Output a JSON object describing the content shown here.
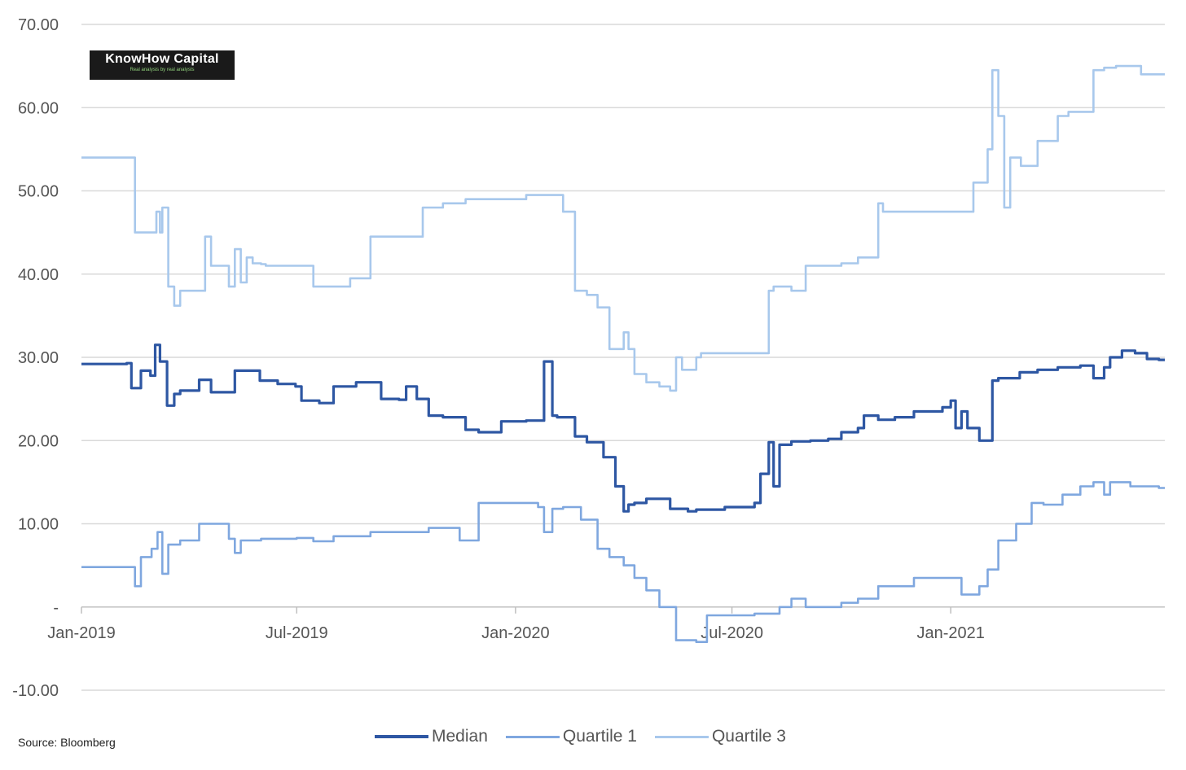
{
  "logo": {
    "name": "KnowHow Capital",
    "tagline": "Real analysis by real analysts"
  },
  "source": "Source: Bloomberg",
  "colors": {
    "median": "#2e57a3",
    "q1": "#7fa7df",
    "q3": "#a8c8ec"
  },
  "chart_data": {
    "type": "line",
    "title": "",
    "xlabel": "",
    "ylabel": "",
    "ylim": [
      -10,
      70
    ],
    "yticks": [
      "70.00",
      "60.00",
      "50.00",
      "40.00",
      "30.00",
      "20.00",
      "10.00",
      "-",
      "-10.00"
    ],
    "xticks": [
      "Jan-2019",
      "Jul-2019",
      "Jan-2020",
      "Jul-2020",
      "Jan-2021"
    ],
    "grid": true,
    "legend_position": "bottom",
    "series": [
      {
        "name": "Median",
        "key": "median",
        "x": [
          "2019-01-01",
          "2019-02-08",
          "2019-02-12",
          "2019-02-20",
          "2019-02-28",
          "2019-03-04",
          "2019-03-08",
          "2019-03-14",
          "2019-03-20",
          "2019-03-25",
          "2019-04-10",
          "2019-04-20",
          "2019-05-10",
          "2019-05-31",
          "2019-06-15",
          "2019-06-30",
          "2019-07-05",
          "2019-07-20",
          "2019-08-01",
          "2019-08-20",
          "2019-09-10",
          "2019-09-25",
          "2019-10-01",
          "2019-10-10",
          "2019-10-20",
          "2019-11-01",
          "2019-11-20",
          "2019-12-01",
          "2019-12-20",
          "2020-01-10",
          "2020-01-25",
          "2020-02-01",
          "2020-02-05",
          "2020-02-20",
          "2020-03-01",
          "2020-03-15",
          "2020-03-25",
          "2020-04-01",
          "2020-04-05",
          "2020-04-10",
          "2020-04-20",
          "2020-05-10",
          "2020-05-25",
          "2020-06-01",
          "2020-06-25",
          "2020-07-20",
          "2020-07-25",
          "2020-08-01",
          "2020-08-05",
          "2020-08-10",
          "2020-08-20",
          "2020-09-05",
          "2020-09-20",
          "2020-10-01",
          "2020-10-15",
          "2020-10-20",
          "2020-11-01",
          "2020-11-15",
          "2020-12-01",
          "2020-12-25",
          "2021-01-01",
          "2021-01-05",
          "2021-01-10",
          "2021-01-15",
          "2021-01-25",
          "2021-02-05",
          "2021-02-10",
          "2021-02-28",
          "2021-03-15",
          "2021-04-01",
          "2021-04-20",
          "2021-05-01",
          "2021-05-10",
          "2021-05-15",
          "2021-05-25",
          "2021-06-05",
          "2021-06-15",
          "2021-06-25"
        ],
        "values": [
          29.2,
          29.3,
          26.3,
          28.4,
          27.8,
          31.5,
          29.5,
          24.2,
          25.6,
          26.0,
          27.3,
          25.8,
          28.4,
          27.2,
          26.8,
          26.5,
          24.8,
          24.5,
          26.5,
          27.0,
          25.0,
          24.9,
          26.5,
          25.0,
          23.0,
          22.8,
          21.3,
          21.0,
          22.3,
          22.4,
          29.5,
          23.0,
          22.8,
          20.5,
          19.8,
          18.0,
          14.5,
          11.5,
          12.3,
          12.5,
          13.0,
          11.8,
          11.5,
          11.7,
          12.0,
          12.5,
          16.0,
          19.8,
          14.5,
          19.5,
          19.9,
          20.0,
          20.2,
          21.0,
          21.5,
          23.0,
          22.5,
          22.8,
          23.5,
          24.0,
          24.8,
          21.5,
          23.5,
          21.5,
          20.0,
          27.2,
          27.5,
          28.2,
          28.5,
          28.8,
          29.0,
          27.5,
          28.8,
          30.0,
          30.8,
          30.5,
          29.8,
          29.7
        ]
      },
      {
        "name": "Quartile 1",
        "key": "q1",
        "x": [
          "2019-01-01",
          "2019-02-10",
          "2019-02-15",
          "2019-02-20",
          "2019-03-01",
          "2019-03-06",
          "2019-03-10",
          "2019-03-15",
          "2019-03-25",
          "2019-04-10",
          "2019-04-20",
          "2019-05-05",
          "2019-05-10",
          "2019-05-15",
          "2019-06-01",
          "2019-07-01",
          "2019-07-15",
          "2019-08-01",
          "2019-09-01",
          "2019-10-01",
          "2019-10-20",
          "2019-11-15",
          "2019-12-01",
          "2020-01-01",
          "2020-01-20",
          "2020-01-25",
          "2020-02-01",
          "2020-02-10",
          "2020-02-25",
          "2020-03-10",
          "2020-03-20",
          "2020-04-01",
          "2020-04-10",
          "2020-04-20",
          "2020-05-01",
          "2020-05-15",
          "2020-06-01",
          "2020-06-10",
          "2020-07-01",
          "2020-07-20",
          "2020-08-10",
          "2020-08-20",
          "2020-09-01",
          "2020-09-20",
          "2020-10-01",
          "2020-10-15",
          "2020-11-01",
          "2020-12-01",
          "2020-12-20",
          "2021-01-01",
          "2021-01-10",
          "2021-01-25",
          "2021-02-01",
          "2021-02-10",
          "2021-02-25",
          "2021-03-10",
          "2021-03-20",
          "2021-04-05",
          "2021-04-20",
          "2021-05-01",
          "2021-05-10",
          "2021-05-15",
          "2021-06-01",
          "2021-06-25"
        ],
        "values": [
          4.8,
          4.8,
          2.5,
          6.0,
          7.0,
          9.0,
          4.0,
          7.5,
          8.0,
          10.0,
          10.0,
          8.2,
          6.5,
          8.0,
          8.2,
          8.3,
          7.9,
          8.5,
          9.0,
          9.0,
          9.5,
          8.0,
          12.5,
          12.5,
          12.0,
          9.0,
          11.8,
          12.0,
          10.5,
          7.0,
          6.0,
          5.0,
          3.5,
          2.0,
          0.0,
          -4.0,
          -4.2,
          -1.0,
          -1.0,
          -0.8,
          0.0,
          1.0,
          0.0,
          0.0,
          0.5,
          1.0,
          2.5,
          3.5,
          3.5,
          3.5,
          1.5,
          2.5,
          4.5,
          8.0,
          10.0,
          12.5,
          12.3,
          13.5,
          14.5,
          15.0,
          13.5,
          15.0,
          14.5,
          14.3
        ]
      },
      {
        "name": "Quartile 3",
        "key": "q3",
        "x": [
          "2019-01-01",
          "2019-02-10",
          "2019-02-15",
          "2019-03-01",
          "2019-03-05",
          "2019-03-08",
          "2019-03-10",
          "2019-03-15",
          "2019-03-20",
          "2019-03-25",
          "2019-04-01",
          "2019-04-15",
          "2019-04-20",
          "2019-05-05",
          "2019-05-10",
          "2019-05-15",
          "2019-05-20",
          "2019-05-25",
          "2019-06-01",
          "2019-06-05",
          "2019-06-15",
          "2019-07-15",
          "2019-08-01",
          "2019-08-15",
          "2019-09-01",
          "2019-10-01",
          "2019-10-15",
          "2019-11-01",
          "2019-11-20",
          "2020-01-01",
          "2020-01-10",
          "2020-02-10",
          "2020-02-20",
          "2020-03-01",
          "2020-03-10",
          "2020-03-20",
          "2020-04-01",
          "2020-04-05",
          "2020-04-10",
          "2020-04-20",
          "2020-05-01",
          "2020-05-10",
          "2020-05-15",
          "2020-05-20",
          "2020-06-01",
          "2020-06-05",
          "2020-06-15",
          "2020-07-15",
          "2020-08-01",
          "2020-08-05",
          "2020-08-20",
          "2020-09-01",
          "2020-10-01",
          "2020-10-15",
          "2020-11-01",
          "2020-11-05",
          "2020-12-01",
          "2021-01-01",
          "2021-01-10",
          "2021-01-20",
          "2021-02-01",
          "2021-02-05",
          "2021-02-10",
          "2021-02-15",
          "2021-02-20",
          "2021-03-01",
          "2021-03-15",
          "2021-04-01",
          "2021-04-10",
          "2021-04-20",
          "2021-05-01",
          "2021-05-10",
          "2021-05-20",
          "2021-06-01",
          "2021-06-10",
          "2021-06-25"
        ],
        "values": [
          54.0,
          54.0,
          45.0,
          45.0,
          47.5,
          45.0,
          48.0,
          38.5,
          36.2,
          38.0,
          38.0,
          44.5,
          41.0,
          38.5,
          43.0,
          39.0,
          42.0,
          41.3,
          41.2,
          41.0,
          41.0,
          38.5,
          38.5,
          39.5,
          44.5,
          44.5,
          48.0,
          48.5,
          49.0,
          49.0,
          49.5,
          47.5,
          38.0,
          37.5,
          36.0,
          31.0,
          33.0,
          31.0,
          28.0,
          27.0,
          26.5,
          26.0,
          30.0,
          28.5,
          30.0,
          30.5,
          30.5,
          30.5,
          38.0,
          38.5,
          38.0,
          41.0,
          41.3,
          42.0,
          48.5,
          47.5,
          47.5,
          47.5,
          47.5,
          51.0,
          55.0,
          64.5,
          59.0,
          48.0,
          54.0,
          53.0,
          56.0,
          59.0,
          59.5,
          59.5,
          64.5,
          64.8,
          65.0,
          65.0,
          64.0,
          64.0
        ]
      }
    ]
  },
  "legend": {
    "items": [
      {
        "label": "Median"
      },
      {
        "label": "Quartile 1"
      },
      {
        "label": "Quartile 3"
      }
    ]
  }
}
